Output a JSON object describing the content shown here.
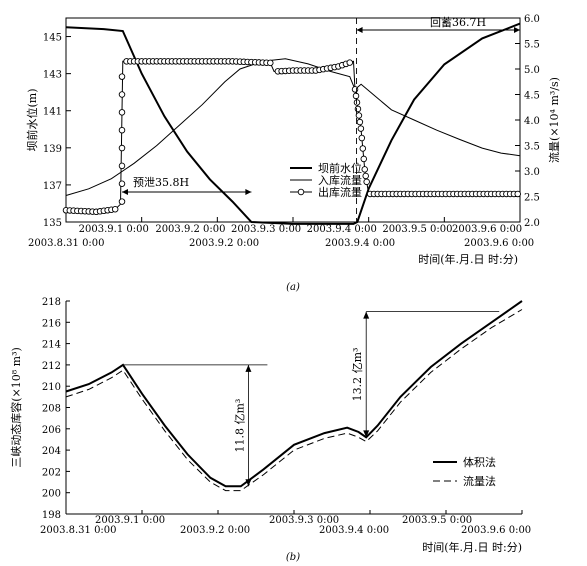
{
  "chart_data": [
    {
      "type": "line",
      "caption": "(a)",
      "xlabel": "时间(年.月.日 时:分)",
      "x_ticks_top": [
        "2003.9.1 0:00",
        "2003.9.2 0:00",
        "2003.9.3 0:00",
        "2003.9.4 0:00",
        "2003.9.5 0:00",
        "2003.9.6 0:00"
      ],
      "x_ticks_bottom": [
        "2003.8.31 0:00",
        "2003.9.2 0:00",
        "2003.9.4 0:00",
        "2003.9.6 0:00"
      ],
      "xlim": [
        0,
        6
      ],
      "ylabel_left": "坝前水位(m)",
      "ylim_left": [
        135,
        146
      ],
      "yticks_left": [
        "135",
        "137",
        "139",
        "141",
        "143",
        "145"
      ],
      "ylabel_right": "流量(×10⁴ m³/s)",
      "ylim_right": [
        2.0,
        6.0
      ],
      "yticks_right": [
        "2.0",
        "2.5",
        "3.0",
        "3.5",
        "4.0",
        "4.5",
        "5.0",
        "5.5",
        "6.0"
      ],
      "legend": [
        "坝前水位",
        "入库流量",
        "出库流量"
      ],
      "annotations": [
        "预泄35.8H",
        "回蓄36.7H"
      ],
      "series": [
        {
          "name": "坝前水位",
          "axis": "left",
          "x": [
            0,
            0.5,
            0.75,
            1.0,
            1.3,
            1.6,
            1.9,
            2.2,
            2.45,
            3.0,
            3.5,
            3.8,
            3.85,
            4.0,
            4.3,
            4.6,
            5.0,
            5.5,
            6.0
          ],
          "y": [
            145.5,
            145.4,
            145.3,
            143.0,
            140.7,
            138.8,
            137.3,
            136.1,
            135.0,
            134.9,
            134.9,
            134.9,
            135.0,
            136.8,
            139.4,
            141.6,
            143.5,
            144.9,
            145.7
          ]
        },
        {
          "name": "入库流量",
          "axis": "right",
          "x": [
            0,
            0.3,
            0.6,
            0.9,
            1.2,
            1.5,
            1.8,
            2.1,
            2.3,
            2.6,
            2.9,
            3.2,
            3.5,
            3.75,
            3.82,
            3.9,
            4.1,
            4.3,
            4.6,
            4.9,
            5.2,
            5.5,
            5.75,
            6.0
          ],
          "y": [
            2.52,
            2.65,
            2.85,
            3.15,
            3.5,
            3.9,
            4.3,
            4.75,
            5.0,
            5.15,
            5.2,
            5.1,
            4.95,
            4.85,
            4.6,
            4.7,
            4.45,
            4.2,
            4.0,
            3.8,
            3.62,
            3.45,
            3.35,
            3.3
          ]
        },
        {
          "name": "出库流量",
          "axis": "right",
          "x": [
            0,
            0.4,
            0.65,
            0.72,
            0.75,
            0.9,
            1.5,
            2.2,
            2.7,
            2.75,
            3.0,
            3.3,
            3.6,
            3.8,
            3.82,
            3.9,
            3.95,
            4.0,
            4.5,
            5.0,
            5.5,
            6.0
          ],
          "y": [
            2.23,
            2.2,
            2.25,
            2.35,
            5.15,
            5.15,
            5.15,
            5.15,
            5.12,
            4.95,
            4.97,
            4.97,
            5.05,
            5.15,
            4.6,
            3.8,
            3.0,
            2.55,
            2.55,
            2.55,
            2.55,
            2.55
          ]
        }
      ]
    },
    {
      "type": "line",
      "caption": "(b)",
      "xlabel": "时间(年.月.日 时:分)",
      "x_ticks_top": [
        "2003.9.1 0:00",
        "2003.9.3 0:00",
        "2003.9.5 0:00"
      ],
      "x_ticks_bottom": [
        "2003.8.31 0:00",
        "2003.9.2 0:00",
        "2003.9.4 0:00",
        "2003.9.6 0:00"
      ],
      "xlim": [
        0,
        6
      ],
      "ylabel": "三峡动态库容(×10⁸ m³)",
      "ylim": [
        198,
        218
      ],
      "yticks": [
        "198",
        "200",
        "202",
        "204",
        "206",
        "208",
        "210",
        "212",
        "214",
        "216",
        "218"
      ],
      "legend": [
        "体积法",
        "流量法"
      ],
      "annotations": [
        "11.8 亿m³",
        "13.2 亿m³"
      ],
      "series": [
        {
          "name": "体积法",
          "x": [
            0,
            0.3,
            0.6,
            0.75,
            1.0,
            1.3,
            1.6,
            1.9,
            2.1,
            2.3,
            2.6,
            3.0,
            3.4,
            3.7,
            3.85,
            3.95,
            4.1,
            4.4,
            4.8,
            5.2,
            5.6,
            6.0
          ],
          "y": [
            209.5,
            210.2,
            211.3,
            212.0,
            209.3,
            206.3,
            203.6,
            201.4,
            200.6,
            200.6,
            202.2,
            204.5,
            205.6,
            206.1,
            205.7,
            205.2,
            206.3,
            209.0,
            211.8,
            214.0,
            216.0,
            218.0
          ]
        },
        {
          "name": "流量法",
          "x": [
            0,
            0.3,
            0.6,
            0.75,
            1.0,
            1.3,
            1.6,
            1.9,
            2.1,
            2.3,
            2.6,
            3.0,
            3.4,
            3.7,
            3.85,
            3.95,
            4.1,
            4.4,
            4.8,
            5.2,
            5.6,
            6.0
          ],
          "y": [
            209.0,
            209.7,
            210.8,
            211.5,
            208.8,
            205.8,
            203.1,
            201.0,
            200.2,
            200.2,
            201.7,
            204.0,
            205.1,
            205.6,
            205.2,
            204.8,
            205.8,
            208.5,
            211.3,
            213.5,
            215.5,
            217.2
          ]
        }
      ]
    }
  ]
}
